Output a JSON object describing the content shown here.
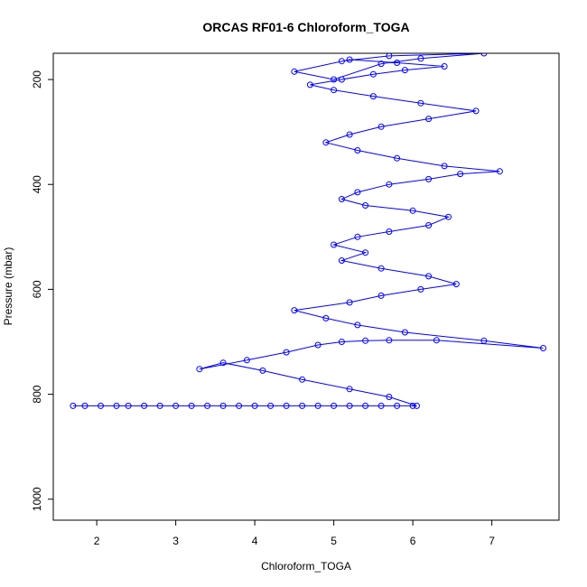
{
  "chart_data": {
    "type": "line",
    "title": "ORCAS RF01-6 Chloroform_TOGA",
    "xlabel": "Chloroform_TOGA",
    "ylabel": "Pressure (mbar)",
    "xlim": [
      1.45,
      7.85
    ],
    "ylim": [
      1040,
      150
    ],
    "y_reversed": true,
    "x_ticks": [
      2,
      3,
      4,
      5,
      6,
      7
    ],
    "x_tick_labels": [
      "2",
      "3",
      "4",
      "5",
      "6",
      "7"
    ],
    "y_ticks": [
      200,
      400,
      600,
      800,
      1000
    ],
    "y_tick_labels": [
      "200",
      "400",
      "600",
      "800",
      "1000"
    ],
    "grid": false,
    "legend": "none",
    "marker": "open-circle",
    "color": "#0000ff",
    "series": [
      {
        "x": [
          1.7,
          1.85,
          2.05,
          2.25,
          2.4,
          2.6,
          2.8,
          3.0,
          3.2,
          3.4,
          3.6,
          3.8,
          4.0,
          4.2,
          4.4,
          4.6,
          4.8,
          5.0,
          5.2,
          5.4,
          5.6,
          5.8,
          6.0,
          6.05,
          5.7,
          5.2,
          4.6,
          4.1,
          3.6,
          3.3,
          3.9,
          4.4,
          4.8,
          5.1,
          5.4,
          5.7,
          6.3,
          7.65,
          6.9,
          5.9,
          5.3,
          4.9,
          4.5,
          5.2,
          5.6,
          6.1,
          6.55,
          6.2,
          5.6,
          5.1,
          5.4,
          5.0,
          5.3,
          5.7,
          6.2,
          6.45,
          6.0,
          5.4,
          5.1,
          5.3,
          5.7,
          6.2,
          6.6,
          7.1,
          6.4,
          5.8,
          5.3,
          4.9,
          5.2,
          5.6,
          6.2,
          6.8,
          6.1,
          5.5,
          5.0,
          4.7,
          5.1,
          5.5,
          5.9,
          6.4,
          5.8,
          5.2,
          4.5,
          5.0,
          5.6,
          6.1,
          6.9,
          5.7,
          5.1
        ],
        "y": [
          822,
          822,
          822,
          822,
          822,
          822,
          822,
          822,
          822,
          822,
          822,
          822,
          822,
          822,
          822,
          822,
          822,
          822,
          822,
          822,
          822,
          822,
          822,
          822,
          805,
          790,
          772,
          755,
          740,
          752,
          735,
          720,
          706,
          700,
          698,
          697,
          697,
          712,
          698,
          682,
          668,
          655,
          640,
          625,
          612,
          600,
          590,
          575,
          560,
          545,
          530,
          515,
          500,
          490,
          478,
          462,
          450,
          440,
          428,
          415,
          400,
          390,
          380,
          375,
          365,
          350,
          335,
          320,
          305,
          290,
          275,
          260,
          245,
          232,
          220,
          210,
          200,
          190,
          182,
          175,
          168,
          162,
          185,
          200,
          170,
          160,
          150,
          155,
          165
        ]
      }
    ]
  }
}
